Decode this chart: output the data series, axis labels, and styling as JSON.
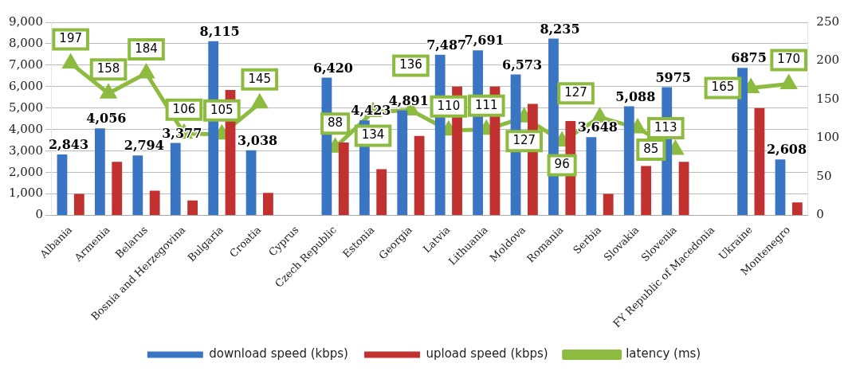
{
  "chart_data": {
    "type": "bar",
    "categories": [
      "Albania",
      "Armenia",
      "Belarus",
      "Bosnia and Herzegovina",
      "Bulgaria",
      "Croatia",
      "Cyprus",
      "Czech Republic",
      "Estonia",
      "Georgia",
      "Latvia",
      "Lithuania",
      "Moldova",
      "Romania",
      "Serbia",
      "Slovakia",
      "Slovenia",
      "FY Republic of Macedonia",
      "Ukraine",
      "Montenegro"
    ],
    "series": [
      {
        "name": "download speed (kbps)",
        "color": "#3a75c4",
        "values": [
          2843,
          4056,
          2794,
          3377,
          8115,
          3038,
          null,
          6420,
          4423,
          4891,
          7487,
          7691,
          6573,
          8235,
          3648,
          5088,
          5975,
          null,
          6875,
          2608
        ],
        "value_labels": [
          "2,843",
          "4,056",
          "2,794",
          "3,377",
          "8,115",
          "3,038",
          null,
          "6,420",
          "4,423",
          "4,891",
          "7,487",
          "7,691",
          "6,573",
          "8,235",
          "3,648",
          "5,088",
          "5975",
          null,
          "6875",
          "2,608"
        ]
      },
      {
        "name": "upload speed (kbps)",
        "color": "#c0312f",
        "values": [
          1000,
          2500,
          1150,
          700,
          5850,
          1050,
          null,
          3400,
          2150,
          3700,
          6000,
          6000,
          5200,
          4400,
          1000,
          2300,
          2500,
          null,
          5000,
          600
        ]
      },
      {
        "name": "latency (ms)",
        "type": "line",
        "axis": "y2",
        "color": "#8cbb3f",
        "marker": "triangle",
        "values": [
          197,
          158,
          184,
          106,
          105,
          145,
          null,
          88,
          134,
          136,
          110,
          111,
          127,
          96,
          127,
          113,
          85,
          null,
          165,
          170
        ],
        "value_labels": [
          "197",
          "158",
          "184",
          "106",
          "105",
          "145",
          null,
          "88",
          "134",
          "136",
          "110",
          "111",
          "127",
          "96",
          "127",
          "113",
          "85",
          null,
          "165",
          "170"
        ]
      }
    ],
    "ylim": [
      0,
      9000
    ],
    "yticks": [
      {
        "value": 0,
        "label": "0"
      },
      {
        "value": 1000,
        "label": "1,000"
      },
      {
        "value": 2000,
        "label": "2,000"
      },
      {
        "value": 3000,
        "label": "3,000"
      },
      {
        "value": 4000,
        "label": "4,000"
      },
      {
        "value": 5000,
        "label": "5,000"
      },
      {
        "value": 6000,
        "label": "6,000"
      },
      {
        "value": 7000,
        "label": "7,000"
      },
      {
        "value": 8000,
        "label": "8,000"
      },
      {
        "value": 9000,
        "label": "9,000"
      }
    ],
    "y2lim": [
      0,
      250
    ],
    "y2ticks": [
      0,
      50,
      100,
      150,
      200,
      250
    ],
    "grid": "y",
    "legend": "bottom"
  }
}
